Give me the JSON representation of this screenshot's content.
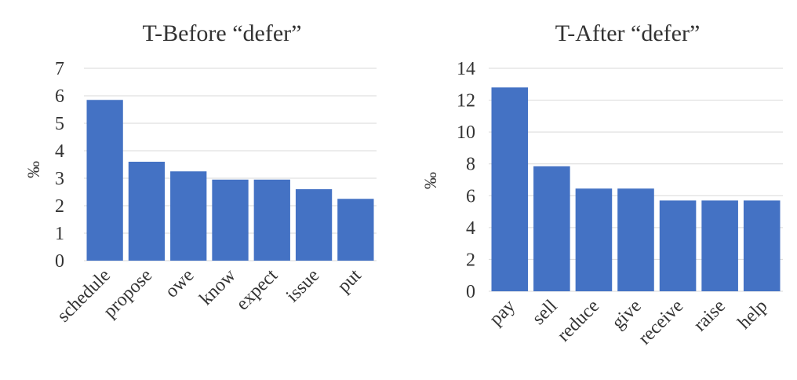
{
  "chart_data": [
    {
      "type": "bar",
      "title": "T-Before “defer”",
      "xlabel": "",
      "ylabel": "‰",
      "categories": [
        "schedule",
        "propose",
        "owe",
        "know",
        "expect",
        "issue",
        "put"
      ],
      "values": [
        5.85,
        3.6,
        3.25,
        2.95,
        2.95,
        2.6,
        2.25
      ],
      "ylim": [
        0,
        7
      ],
      "yticks": [
        0,
        1,
        2,
        3,
        4,
        5,
        6,
        7
      ],
      "grid": true,
      "bar_color": "#4472C4"
    },
    {
      "type": "bar",
      "title": "T-After “defer”",
      "xlabel": "",
      "ylabel": "‰",
      "categories": [
        "pay",
        "sell",
        "reduce",
        "give",
        "receive",
        "raise",
        "help"
      ],
      "values": [
        12.8,
        7.85,
        6.45,
        6.45,
        5.7,
        5.7,
        5.7
      ],
      "ylim": [
        0,
        14
      ],
      "yticks": [
        0,
        2,
        4,
        6,
        8,
        10,
        12,
        14
      ],
      "grid": true,
      "bar_color": "#4472C4"
    }
  ]
}
